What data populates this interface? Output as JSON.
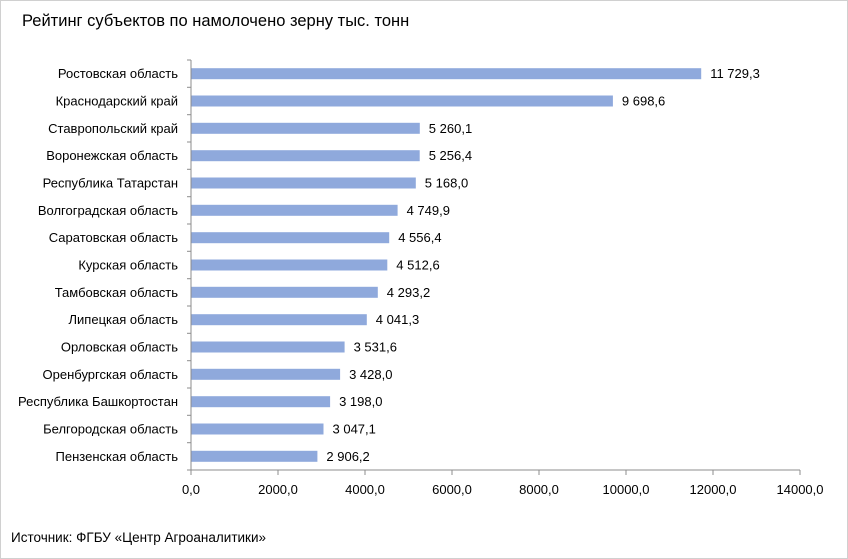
{
  "title": "Рейтинг субъектов по намолочено зерну тыс. тонн",
  "source": "Источник: ФГБУ «Центр Агроаналитики»",
  "colors": {
    "bar": "#8FA9DC",
    "axis": "#8c8c8c",
    "text": "#000000"
  },
  "chart_data": {
    "type": "bar",
    "orientation": "horizontal",
    "categories": [
      "Ростовская область",
      "Краснодарский край",
      "Ставропольский край",
      "Воронежская область",
      "Республика Татарстан",
      "Волгоградская область",
      "Саратовская область",
      "Курская область",
      "Тамбовская область",
      "Липецкая область",
      "Орловская область",
      "Оренбургская область",
      "Республика Башкортостан",
      "Белгородская область",
      "Пензенская область"
    ],
    "values": [
      11729.3,
      9698.6,
      5260.1,
      5256.4,
      5168.0,
      4749.9,
      4556.4,
      4512.6,
      4293.2,
      4041.3,
      3531.6,
      3428.0,
      3198.0,
      3047.1,
      2906.2
    ],
    "data_labels": [
      "11 729,3",
      "9 698,6",
      "5 260,1",
      "5 256,4",
      "5 168,0",
      "4 749,9",
      "4 556,4",
      "4 512,6",
      "4 293,2",
      "4 041,3",
      "3 531,6",
      "3 428,0",
      "3 198,0",
      "3 047,1",
      "2 906,2"
    ],
    "xlim": [
      0,
      14000
    ],
    "ticks": [
      0,
      2000,
      4000,
      6000,
      8000,
      10000,
      12000,
      14000
    ],
    "tick_labels": [
      "0,0",
      "2000,0",
      "4000,0",
      "6000,0",
      "8000,0",
      "10000,0",
      "12000,0",
      "14000,0"
    ],
    "grid": false,
    "legend": "none"
  }
}
